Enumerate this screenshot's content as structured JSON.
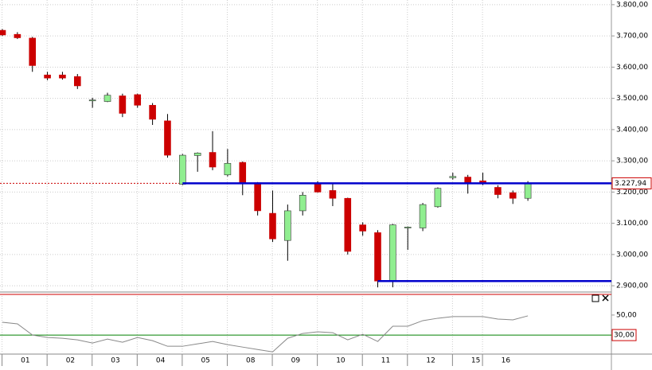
{
  "chart_data": [
    {
      "type": "candlestick",
      "categories": [
        null,
        "01",
        null,
        null,
        "02",
        null,
        null,
        "03",
        null,
        null,
        "04",
        null,
        null,
        "05",
        null,
        null,
        "08",
        null,
        null,
        "09",
        null,
        null,
        "10",
        null,
        null,
        "11",
        null,
        null,
        "12",
        null,
        null,
        "15",
        null,
        "16",
        null,
        null
      ],
      "open": [
        3718,
        3705,
        3693,
        3575,
        3575,
        3570,
        3492,
        3490,
        3508,
        3512,
        3478,
        3428,
        3225,
        3317,
        3327,
        3255,
        3295,
        3230,
        3132,
        3045,
        3140,
        3225,
        3205,
        3180,
        3095,
        3070,
        2915,
        3085,
        3085,
        3153,
        3246,
        3248,
        3236,
        3215,
        3198,
        3180
      ],
      "high": [
        3722,
        3712,
        3697,
        3585,
        3585,
        3578,
        3502,
        3518,
        3515,
        3515,
        3485,
        3450,
        3322,
        3327,
        3395,
        3338,
        3298,
        3232,
        3205,
        3160,
        3200,
        3235,
        3230,
        3182,
        3103,
        3078,
        3098,
        3090,
        3165,
        3215,
        3262,
        3255,
        3262,
        3222,
        3205,
        3235
      ],
      "low": [
        3700,
        3690,
        3585,
        3558,
        3560,
        3530,
        3470,
        3488,
        3440,
        3470,
        3415,
        3310,
        3222,
        3265,
        3270,
        3250,
        3190,
        3125,
        3040,
        2980,
        3125,
        3198,
        3155,
        3000,
        3060,
        2895,
        2895,
        3015,
        3075,
        3150,
        3240,
        3195,
        3222,
        3180,
        3162,
        3172
      ],
      "close": [
        3703,
        3694,
        3605,
        3565,
        3565,
        3540,
        3495,
        3510,
        3452,
        3478,
        3433,
        3318,
        3318,
        3325,
        3280,
        3292,
        3228,
        3140,
        3050,
        3140,
        3190,
        3200,
        3180,
        3010,
        3075,
        2915,
        3095,
        3088,
        3160,
        3212,
        3250,
        3228,
        3228,
        3192,
        3180,
        3228
      ],
      "up_color": "#90ee90",
      "down_color": "#cc0000",
      "ylim": [
        2885,
        3815
      ],
      "yticks": [
        {
          "value": 2900,
          "label": "2.900,00"
        },
        {
          "value": 3000,
          "label": "3.000,00"
        },
        {
          "value": 3100,
          "label": "3.100,00"
        },
        {
          "value": 3200,
          "label": "3.200,00"
        },
        {
          "value": 3300,
          "label": "3.300,00"
        },
        {
          "value": 3400,
          "label": "3.400,00"
        },
        {
          "value": 3500,
          "label": "3.500,00"
        },
        {
          "value": 3600,
          "label": "3.600,00"
        },
        {
          "value": 3700,
          "label": "3.700,00"
        },
        {
          "value": 3800,
          "label": "3.800,00"
        }
      ],
      "price_line": {
        "value": 3227.94,
        "label": "3.227,94",
        "color": "#cc0000"
      },
      "levels": [
        {
          "value": 3228,
          "from": 12,
          "color": "#0000cc"
        },
        {
          "value": 2915,
          "from": 25,
          "color": "#0000cc"
        }
      ],
      "grid": true
    },
    {
      "type": "line",
      "values": [
        42.8,
        41.2,
        30,
        27.6,
        26.8,
        25.2,
        22,
        26,
        22.8,
        27.6,
        24.4,
        18.8,
        18.8,
        21.2,
        23.6,
        20.4,
        18,
        15.6,
        13.2,
        26.8,
        31.6,
        33.2,
        32.4,
        25.2,
        30.8,
        23.6,
        38.8,
        38.8,
        44.4,
        46.8,
        48.4,
        48.4,
        48.4,
        46,
        45.2,
        49.2
      ],
      "color": "#888888",
      "ylim": [
        11,
        69
      ],
      "yticks": [
        {
          "value": 50,
          "label": "50,00"
        }
      ],
      "level": {
        "value": 30,
        "label": "30,00",
        "color": "#008000"
      }
    }
  ]
}
